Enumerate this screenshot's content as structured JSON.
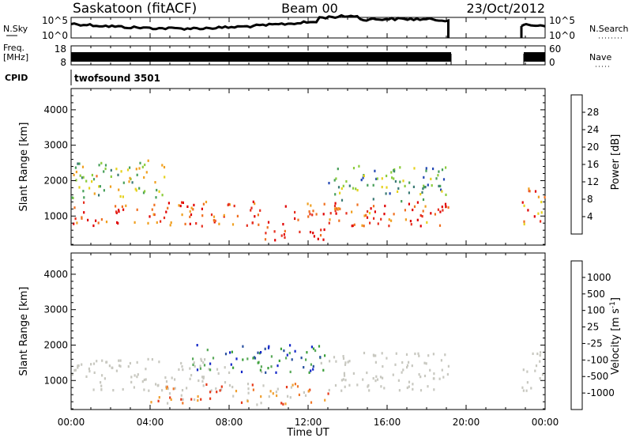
{
  "header": {
    "station": "Saskatoon (fitACF)",
    "beam": "Beam 00",
    "date": "23/Oct/2012"
  },
  "noise_panel": {
    "left_label": "N.Sky",
    "left_ticks": [
      "10^5",
      "10^0"
    ],
    "right_label": "N.Search",
    "right_ticks": [
      "10^5",
      "10^0"
    ]
  },
  "freq_panel": {
    "left_label_line1": "Freq.",
    "left_label_line2": "[MHz]",
    "left_ticks": [
      "18",
      "8"
    ],
    "right_label": "Nave",
    "right_ticks": [
      "60",
      "0"
    ]
  },
  "cpid_panel": {
    "label": "CPID",
    "program": "twofsound 3501"
  },
  "time_axis": {
    "label": "Time UT",
    "ticks": [
      "00:00",
      "04:00",
      "08:00",
      "12:00",
      "16:00",
      "20:00",
      "00:00"
    ]
  },
  "colorbars": {
    "power": {
      "title": "Power [dB]",
      "colors": [
        "#1428e6",
        "#2448b4",
        "#3a7a74",
        "#48a05a",
        "#8ccc3c",
        "#e6d21e",
        "#f0a020",
        "#f07020",
        "#e63020",
        "#e00000"
      ],
      "ticks": [
        "4",
        "8",
        "12",
        "16",
        "20",
        "24",
        "28"
      ]
    },
    "velocity": {
      "title": "Velocity [m s^-1]",
      "colors": [
        "#e00000",
        "#e63a1a",
        "#f07828",
        "#f0a030",
        "#c8c8c0",
        "#c8c8c0",
        "#3ca03a",
        "#5aaa5a",
        "#2850a0",
        "#1428c8"
      ],
      "ticks": [
        "-1000",
        "-500",
        "-100",
        "-25",
        "25",
        "100",
        "500",
        "1000"
      ]
    }
  },
  "chart_data": [
    {
      "type": "heatmap",
      "title": "Power",
      "xlabel": "Time UT",
      "ylabel": "Slant Range [km]",
      "x_range_hours": [
        0,
        24
      ],
      "ylim": [
        180,
        4600
      ],
      "yticks": [
        1000,
        2000,
        3000,
        4000
      ],
      "colorbar_label": "Power [dB]",
      "colorbar_range": [
        0,
        32
      ],
      "data_gaps_hours": [
        [
          19.1,
          22.8
        ]
      ],
      "scatter_bands": [
        {
          "t_start": 0.0,
          "t_end": 19.1,
          "range_low_km": 700,
          "range_high_km": 1400,
          "typical_db": 26
        },
        {
          "t_start": 9.5,
          "t_end": 13.0,
          "range_low_km": 300,
          "range_high_km": 700,
          "typical_db": 28
        },
        {
          "t_start": 0.0,
          "t_end": 5.0,
          "range_low_km": 1500,
          "range_high_km": 2600,
          "typical_db": 16
        },
        {
          "t_start": 13.0,
          "t_end": 19.1,
          "range_low_km": 1400,
          "range_high_km": 2400,
          "typical_db": 12
        },
        {
          "t_start": 22.8,
          "t_end": 24.0,
          "range_low_km": 700,
          "range_high_km": 1800,
          "typical_db": 24
        }
      ]
    },
    {
      "type": "heatmap",
      "title": "Velocity",
      "xlabel": "Time UT",
      "ylabel": "Slant Range [km]",
      "x_range_hours": [
        0,
        24
      ],
      "ylim": [
        180,
        4600
      ],
      "yticks": [
        1000,
        2000,
        3000,
        4000
      ],
      "colorbar_label": "Velocity [m s^-1]",
      "colorbar_range": [
        -1000,
        1000
      ],
      "data_gaps_hours": [
        [
          19.1,
          22.8
        ]
      ],
      "scatter_bands": [
        {
          "t_start": 0.0,
          "t_end": 8.0,
          "range_low_km": 700,
          "range_high_km": 1600,
          "typical_ms": 0
        },
        {
          "t_start": 13.0,
          "t_end": 19.1,
          "range_low_km": 700,
          "range_high_km": 1800,
          "typical_ms": 0
        },
        {
          "t_start": 6.0,
          "t_end": 13.0,
          "range_low_km": 1200,
          "range_high_km": 2000,
          "typical_ms": 600
        },
        {
          "t_start": 4.0,
          "t_end": 13.0,
          "range_low_km": 300,
          "range_high_km": 900,
          "typical_ms": -300
        },
        {
          "t_start": 22.8,
          "t_end": 24.0,
          "range_low_km": 700,
          "range_high_km": 1800,
          "typical_ms": 0
        }
      ]
    }
  ]
}
